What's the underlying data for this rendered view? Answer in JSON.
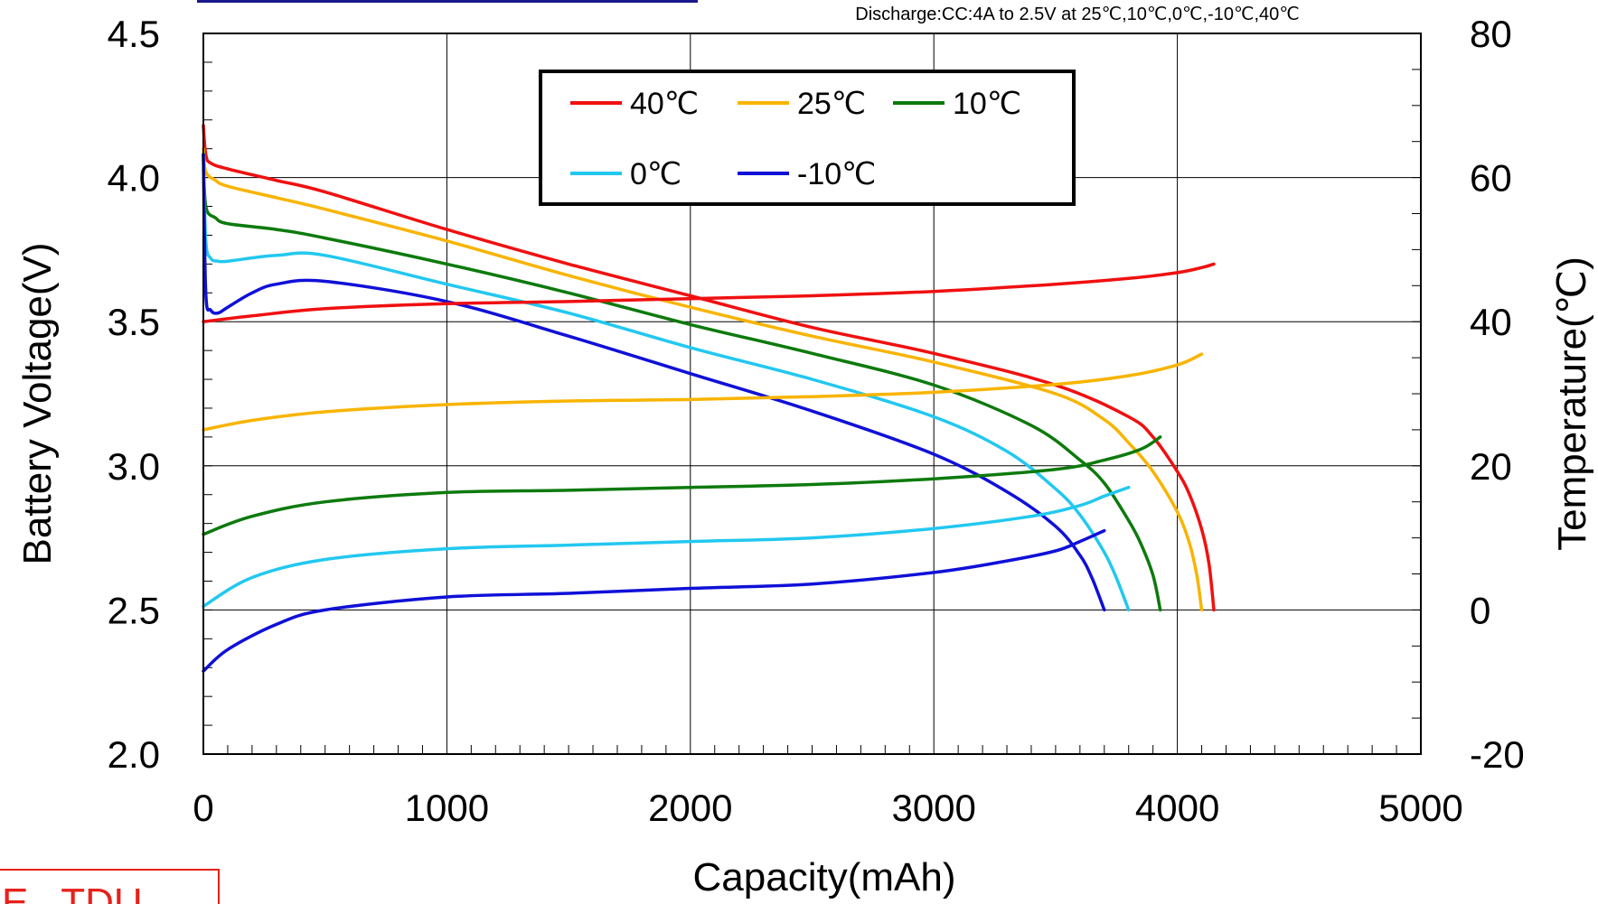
{
  "chart_data": {
    "type": "line",
    "title": "",
    "subtitle": "Discharge:CC:4A to 2.5V at 25℃,10℃,0℃,-10℃,40℃",
    "xlabel": "Capacity(mAh)",
    "ylabel": "Battery Voltage(V)",
    "y2label": "Temperature(℃)",
    "xlim": [
      0,
      5000
    ],
    "ylim": [
      2.0,
      4.5
    ],
    "y2lim": [
      -20,
      80
    ],
    "x_ticks": [
      "0",
      "1000",
      "2000",
      "3000",
      "4000",
      "5000"
    ],
    "y_ticks": [
      "2.0",
      "2.5",
      "3.0",
      "3.5",
      "4.0",
      "4.5"
    ],
    "y2_ticks": [
      "-20",
      "0",
      "20",
      "40",
      "60",
      "80"
    ],
    "grid": true,
    "legend": {
      "placement": "top-center",
      "entries": [
        "40℃",
        "25℃",
        "10℃",
        "0℃",
        "-10℃"
      ]
    },
    "series": [
      {
        "name": "40℃",
        "color": "#f01010",
        "axis": "voltage",
        "x": [
          0,
          10,
          30,
          100,
          300,
          500,
          1000,
          1500,
          2000,
          2500,
          3000,
          3500,
          3800,
          3900,
          4000,
          4050,
          4100,
          4130,
          4150
        ],
        "y": [
          4.18,
          4.08,
          4.05,
          4.03,
          3.99,
          3.95,
          3.82,
          3.7,
          3.59,
          3.48,
          3.39,
          3.28,
          3.17,
          3.1,
          2.98,
          2.9,
          2.78,
          2.66,
          2.5
        ]
      },
      {
        "name": "25℃",
        "color": "#f8b400",
        "axis": "voltage",
        "x": [
          0,
          10,
          50,
          100,
          300,
          500,
          1000,
          1500,
          2000,
          2500,
          3000,
          3500,
          3700,
          3800,
          3900,
          4000,
          4050,
          4080,
          4100
        ],
        "y": [
          4.1,
          4.02,
          3.99,
          3.97,
          3.93,
          3.89,
          3.78,
          3.66,
          3.55,
          3.45,
          3.36,
          3.25,
          3.16,
          3.08,
          2.98,
          2.84,
          2.73,
          2.62,
          2.5
        ]
      },
      {
        "name": "10℃",
        "color": "#0d7a0d",
        "axis": "voltage",
        "x": [
          0,
          10,
          50,
          100,
          300,
          500,
          1000,
          1500,
          2000,
          2500,
          3000,
          3400,
          3600,
          3700,
          3800,
          3850,
          3900,
          3930
        ],
        "y": [
          4.08,
          3.9,
          3.86,
          3.84,
          3.82,
          3.79,
          3.7,
          3.6,
          3.49,
          3.39,
          3.28,
          3.14,
          3.02,
          2.94,
          2.81,
          2.73,
          2.62,
          2.5
        ]
      },
      {
        "name": "0℃",
        "color": "#22c8f0",
        "axis": "voltage",
        "x": [
          0,
          10,
          30,
          60,
          100,
          300,
          500,
          1000,
          1500,
          2000,
          2500,
          3000,
          3300,
          3500,
          3600,
          3700,
          3750,
          3800
        ],
        "y": [
          4.08,
          3.78,
          3.72,
          3.71,
          3.71,
          3.73,
          3.73,
          3.63,
          3.53,
          3.41,
          3.3,
          3.17,
          3.05,
          2.92,
          2.83,
          2.7,
          2.61,
          2.5
        ]
      },
      {
        "name": "-10℃",
        "color": "#1010d8",
        "axis": "voltage",
        "x": [
          0,
          10,
          30,
          60,
          100,
          200,
          300,
          500,
          1000,
          1500,
          2000,
          2500,
          3000,
          3300,
          3500,
          3600,
          3650,
          3700
        ],
        "y": [
          4.08,
          3.6,
          3.54,
          3.53,
          3.55,
          3.6,
          3.63,
          3.64,
          3.57,
          3.45,
          3.32,
          3.19,
          3.04,
          2.91,
          2.79,
          2.69,
          2.61,
          2.5
        ]
      },
      {
        "name": "40℃",
        "color": "#f01010",
        "axis": "temperature",
        "x": [
          0,
          200,
          500,
          1000,
          1500,
          2000,
          2500,
          3000,
          3500,
          3800,
          4000,
          4100,
          4150
        ],
        "y": [
          40,
          40.8,
          41.8,
          42.5,
          42.8,
          43.2,
          43.6,
          44.2,
          45.2,
          46,
          46.8,
          47.5,
          48
        ]
      },
      {
        "name": "25℃",
        "color": "#f8b400",
        "axis": "temperature",
        "x": [
          0,
          200,
          500,
          1000,
          1500,
          2000,
          2500,
          3000,
          3500,
          3800,
          4000,
          4100
        ],
        "y": [
          25,
          26.3,
          27.5,
          28.5,
          29,
          29.2,
          29.6,
          30.2,
          31.3,
          32.5,
          34,
          35.5
        ]
      },
      {
        "name": "10℃",
        "color": "#0d7a0d",
        "axis": "temperature",
        "x": [
          0,
          200,
          500,
          1000,
          1500,
          2000,
          2500,
          3000,
          3500,
          3700,
          3850,
          3930
        ],
        "y": [
          10.5,
          13,
          15,
          16.3,
          16.6,
          17,
          17.4,
          18.2,
          19.5,
          20.8,
          22.3,
          24
        ]
      },
      {
        "name": "0℃",
        "color": "#22c8f0",
        "axis": "temperature",
        "x": [
          0,
          200,
          500,
          1000,
          1500,
          2000,
          2500,
          3000,
          3400,
          3600,
          3700,
          3800
        ],
        "y": [
          0.5,
          4.5,
          7,
          8.5,
          9,
          9.5,
          10,
          11.3,
          13,
          14.5,
          15.8,
          17
        ]
      },
      {
        "name": "-10℃",
        "color": "#1010d8",
        "axis": "temperature",
        "x": [
          0,
          100,
          300,
          500,
          1000,
          1500,
          2000,
          2500,
          3000,
          3300,
          3500,
          3600,
          3700
        ],
        "y": [
          -8.5,
          -5.5,
          -2,
          0,
          1.8,
          2.3,
          3,
          3.6,
          5.2,
          6.8,
          8.2,
          9.5,
          11
        ]
      }
    ]
  },
  "stamp": {
    "text": "E   TDU"
  }
}
